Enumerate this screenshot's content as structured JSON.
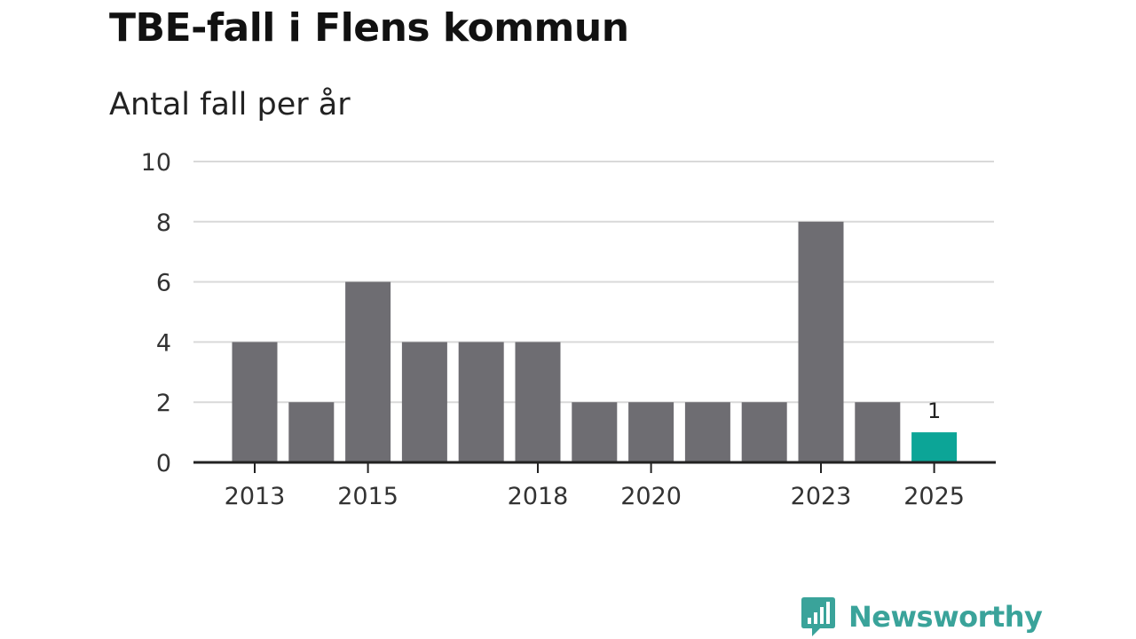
{
  "chart_data": {
    "type": "bar",
    "title": "TBE-fall i Flens kommun",
    "subtitle": "Antal fall per år",
    "categories": [
      "2013",
      "2014",
      "2015",
      "2016",
      "2017",
      "2018",
      "2019",
      "2020",
      "2021",
      "2022",
      "2023",
      "2024",
      "2025"
    ],
    "values": [
      4,
      2,
      6,
      4,
      4,
      4,
      2,
      2,
      2,
      2,
      8,
      2,
      1
    ],
    "x_tick_labels": [
      "2013",
      "2015",
      "2018",
      "2020",
      "2023",
      "2025"
    ],
    "y_ticks": [
      0,
      2,
      4,
      6,
      8,
      10
    ],
    "ylim": [
      0,
      10
    ],
    "xlabel": "",
    "ylabel": "",
    "grid": true,
    "highlight": {
      "category": "2025",
      "label": "1"
    },
    "colors": {
      "bar": "#6e6d72",
      "highlight": "#0ca597",
      "grid": "#d9d9d9",
      "axis": "#222222"
    }
  },
  "brand": {
    "name": "Newsworthy",
    "logo_icon": "newsworthy-logo-icon",
    "color": "#3aa39a"
  }
}
